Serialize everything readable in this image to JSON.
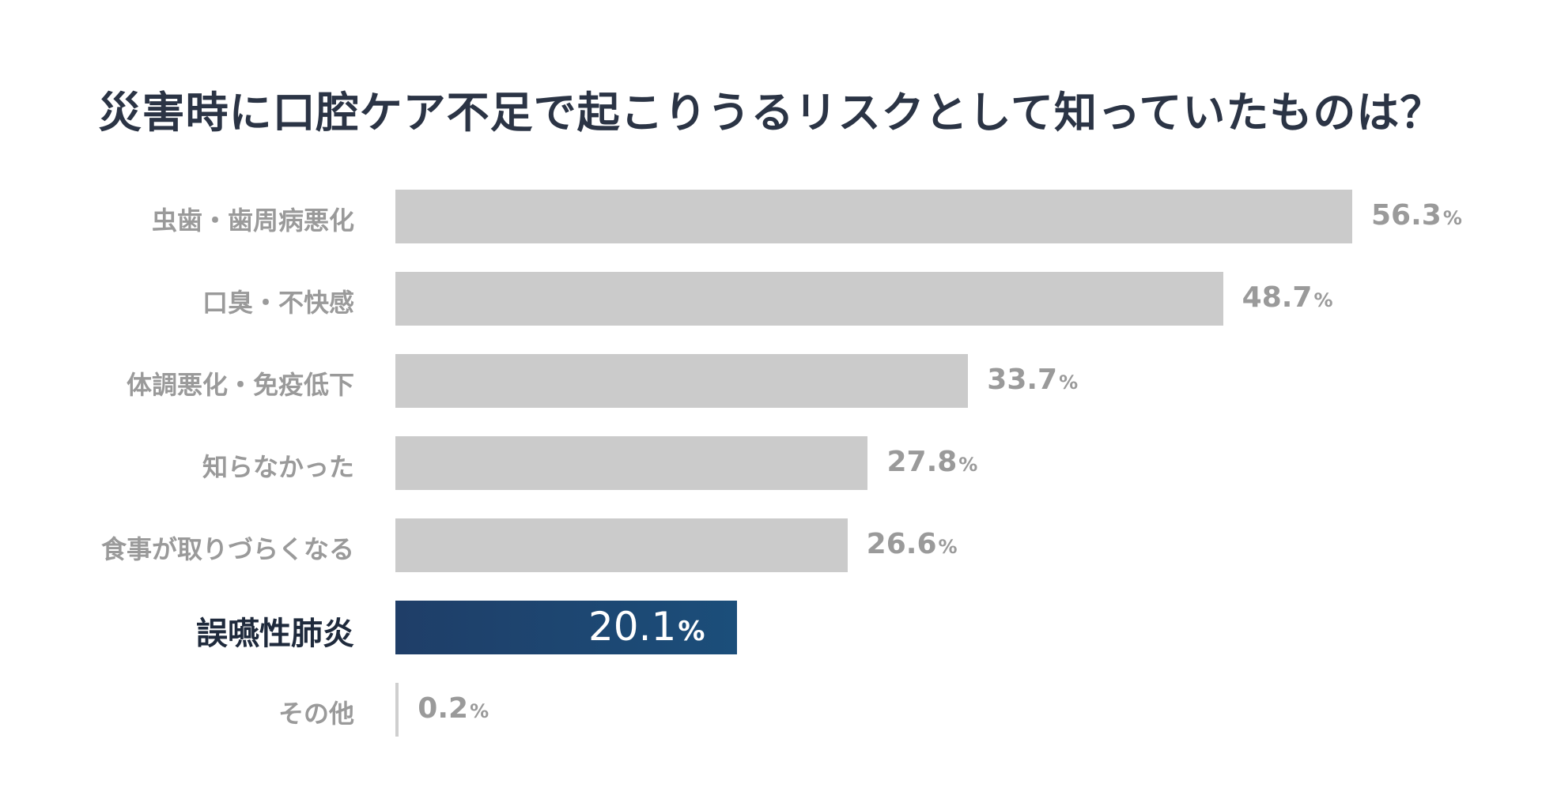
{
  "chart_data": {
    "type": "bar",
    "orientation": "horizontal",
    "title": "災害時に口腔ケア不足で起こりうるリスクとして知っていたものは？",
    "xlabel": "",
    "ylabel": "",
    "categories": [
      "虫歯・歯周病悪化",
      "口臭・不快感",
      "体調悪化・免疫低下",
      "知らなかった",
      "食事が取りづらくなる",
      "誤嚥性肺炎",
      "その他"
    ],
    "values": [
      56.3,
      48.7,
      33.7,
      27.8,
      26.6,
      20.1,
      0.2
    ],
    "value_labels": [
      "56.3",
      "48.7",
      "33.7",
      "27.8",
      "26.6",
      "20.1",
      "0.2"
    ],
    "unit": "%",
    "highlight_index": 5,
    "xlim": [
      0,
      100
    ],
    "grid": false,
    "legend": "none",
    "colors": {
      "bar": "#cbcbcb",
      "highlight_bar": "#1c4672",
      "label": "#9a9a9a",
      "highlight_label": "#1f2a3c",
      "title": "#2b3445",
      "inside_value": "#ffffff"
    }
  }
}
